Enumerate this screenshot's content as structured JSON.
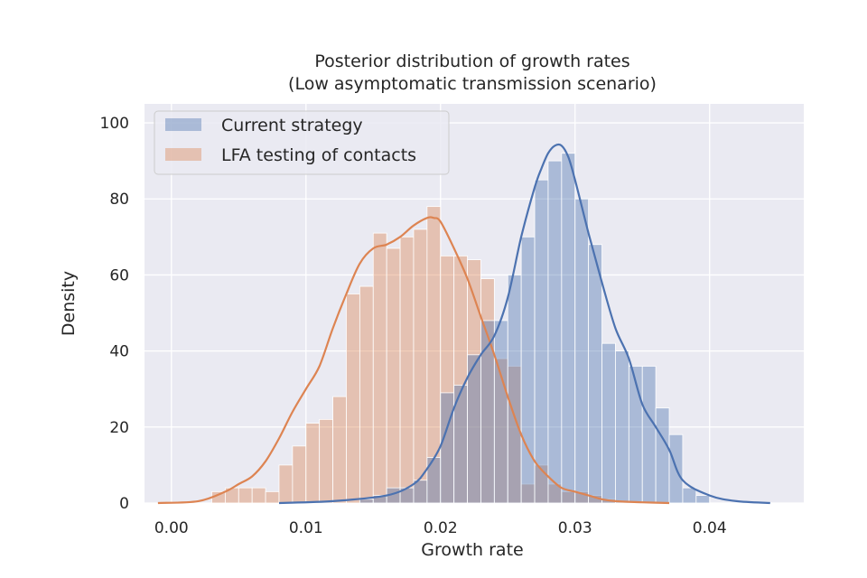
{
  "chart_data": {
    "type": "histogram",
    "title": "Posterior distribution of growth rates",
    "subtitle": "(Low asymptomatic transmission scenario)",
    "xlabel": "Growth rate",
    "ylabel": "Density",
    "xlim": [
      -0.002,
      0.047
    ],
    "ylim": [
      0,
      105
    ],
    "x_ticks": [
      {
        "value": 0.0,
        "label": "0.00"
      },
      {
        "value": 0.01,
        "label": "0.01"
      },
      {
        "value": 0.02,
        "label": "0.02"
      },
      {
        "value": 0.03,
        "label": "0.03"
      },
      {
        "value": 0.04,
        "label": "0.04"
      }
    ],
    "y_ticks": [
      {
        "value": 0,
        "label": "0"
      },
      {
        "value": 20,
        "label": "20"
      },
      {
        "value": 40,
        "label": "40"
      },
      {
        "value": 60,
        "label": "60"
      },
      {
        "value": 80,
        "label": "80"
      },
      {
        "value": 100,
        "label": "100"
      }
    ],
    "grid": true,
    "legend_position": "top-left",
    "series": [
      {
        "name": "Current strategy",
        "color": "#4c72b0",
        "bin_width": 0.001,
        "bins_start": [
          0.014,
          0.015,
          0.016,
          0.017,
          0.018,
          0.019,
          0.02,
          0.021,
          0.022,
          0.023,
          0.024,
          0.025,
          0.026,
          0.027,
          0.028,
          0.029,
          0.03,
          0.031,
          0.032,
          0.033,
          0.034,
          0.035,
          0.036,
          0.037,
          0.038,
          0.039
        ],
        "heights": [
          1,
          2,
          4,
          4,
          6,
          12,
          29,
          31,
          39,
          48,
          48,
          60,
          70,
          85,
          90,
          92,
          80,
          68,
          42,
          40,
          36,
          36,
          25,
          18,
          4,
          2
        ],
        "kde_x": [
          0.008,
          0.012,
          0.016,
          0.018,
          0.019,
          0.02,
          0.021,
          0.022,
          0.023,
          0.024,
          0.025,
          0.026,
          0.027,
          0.0275,
          0.028,
          0.0285,
          0.029,
          0.0295,
          0.03,
          0.031,
          0.032,
          0.033,
          0.034,
          0.035,
          0.036,
          0.037,
          0.038,
          0.04,
          0.042,
          0.0445
        ],
        "kde_y": [
          0,
          0.5,
          2,
          5,
          9,
          15,
          25,
          33,
          39,
          44,
          54,
          70,
          83,
          88,
          92,
          94,
          94,
          91,
          85,
          71,
          58,
          46,
          38,
          26,
          20,
          14,
          6,
          2,
          0.5,
          0
        ]
      },
      {
        "name": "LFA testing of contacts",
        "color": "#dd8452",
        "bin_width": 0.001,
        "bins_start": [
          0.003,
          0.004,
          0.005,
          0.006,
          0.007,
          0.008,
          0.009,
          0.01,
          0.011,
          0.012,
          0.013,
          0.014,
          0.015,
          0.016,
          0.017,
          0.018,
          0.019,
          0.02,
          0.021,
          0.022,
          0.023,
          0.024,
          0.025,
          0.026,
          0.027,
          0.028,
          0.029,
          0.03,
          0.031,
          0.032
        ],
        "heights": [
          3,
          4,
          4,
          4,
          3,
          10,
          15,
          21,
          22,
          28,
          55,
          57,
          71,
          67,
          70,
          72,
          78,
          65,
          65,
          64,
          59,
          38,
          36,
          5,
          10,
          5,
          3,
          3,
          2,
          1
        ],
        "kde_x": [
          -0.001,
          0.002,
          0.004,
          0.005,
          0.006,
          0.007,
          0.008,
          0.009,
          0.01,
          0.011,
          0.012,
          0.013,
          0.014,
          0.015,
          0.016,
          0.017,
          0.018,
          0.019,
          0.0195,
          0.02,
          0.021,
          0.022,
          0.023,
          0.024,
          0.025,
          0.026,
          0.027,
          0.028,
          0.029,
          0.03,
          0.031,
          0.032,
          0.033,
          0.035,
          0.037
        ],
        "kde_y": [
          0,
          0.5,
          3,
          5,
          7,
          11,
          17,
          24,
          30,
          36,
          46,
          55,
          63,
          67,
          68,
          70,
          73,
          75,
          75,
          74,
          67,
          59,
          49,
          39,
          28,
          18,
          11,
          7,
          4,
          3,
          2,
          1,
          0.5,
          0.2,
          0
        ]
      }
    ]
  }
}
